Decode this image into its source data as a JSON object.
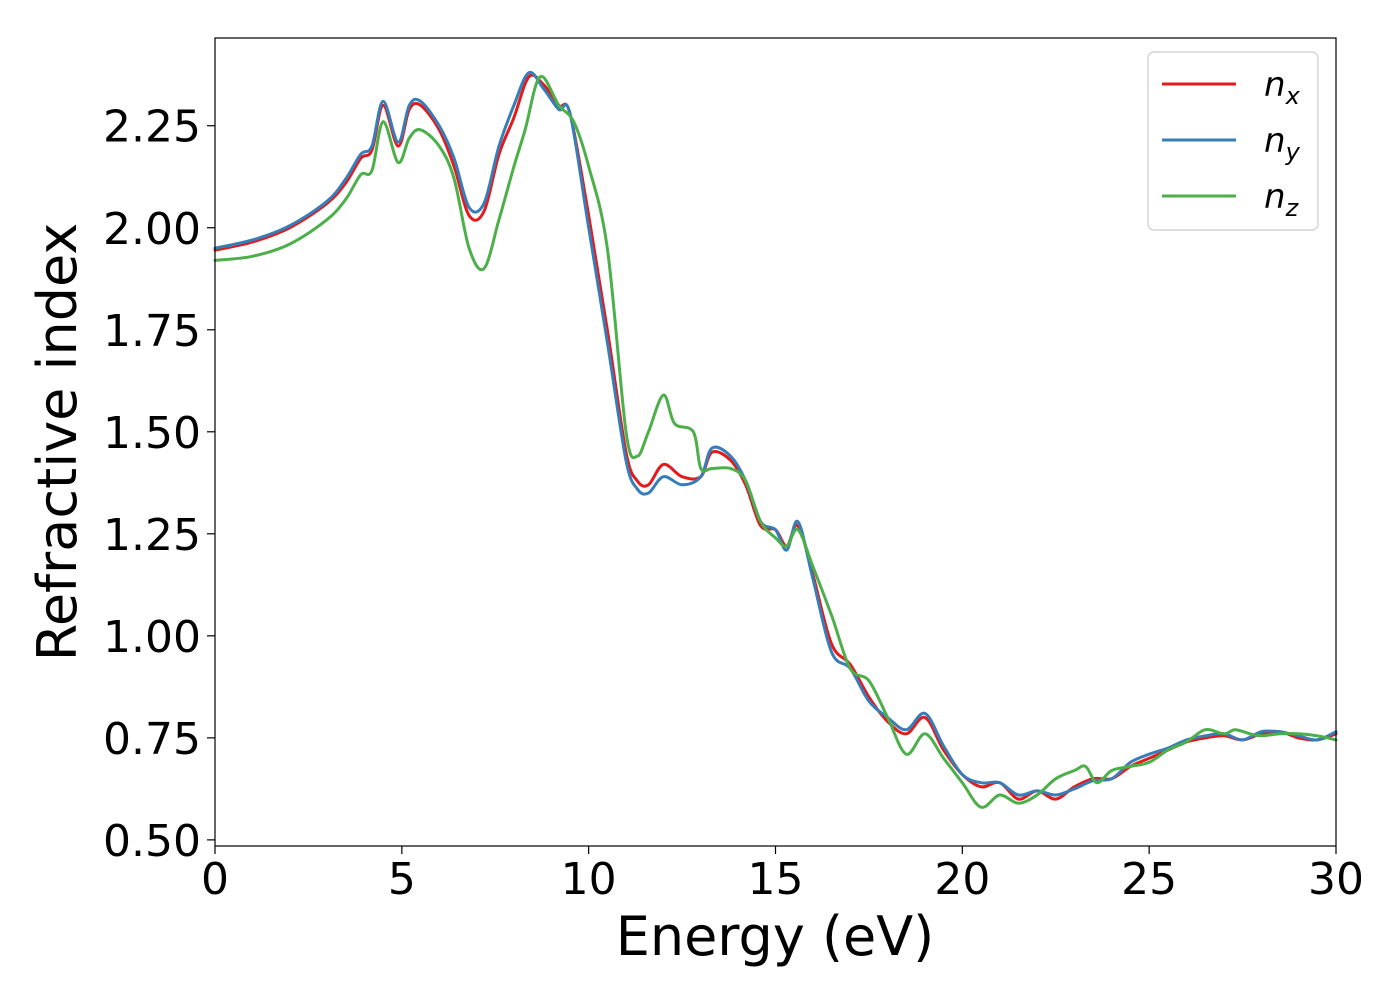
{
  "chart_data": {
    "type": "line",
    "title": "",
    "xlabel": "Energy (eV)",
    "ylabel": "Refractive index",
    "xlim": [
      0,
      30
    ],
    "ylim": [
      0.485,
      2.465
    ],
    "xticks": [
      0,
      5,
      10,
      15,
      20,
      25,
      30
    ],
    "xtick_labels": [
      "0",
      "5",
      "10",
      "15",
      "20",
      "25",
      "30"
    ],
    "yticks": [
      0.5,
      0.75,
      1.0,
      1.25,
      1.5,
      1.75,
      2.0,
      2.25
    ],
    "ytick_labels": [
      "0.50",
      "0.75",
      "1.00",
      "1.25",
      "1.50",
      "1.75",
      "2.00",
      "2.25"
    ],
    "grid": false,
    "legend_position": "top-right",
    "series": [
      {
        "name": "n_x",
        "label_main": "n",
        "label_sub": "x",
        "color": "#e41a1c",
        "x": [
          0,
          1,
          2,
          3,
          3.5,
          3.9,
          4.2,
          4.5,
          4.9,
          5.2,
          5.5,
          6.0,
          6.4,
          6.8,
          7.2,
          7.6,
          8.0,
          8.4,
          8.8,
          9.2,
          9.5,
          10.0,
          10.5,
          11.0,
          11.3,
          11.6,
          12.0,
          12.5,
          13.0,
          13.3,
          13.8,
          14.2,
          14.6,
          15.0,
          15.3,
          15.6,
          16.0,
          16.5,
          17.0,
          17.5,
          18.0,
          18.5,
          19.0,
          19.5,
          20.0,
          20.5,
          21.0,
          21.5,
          22.0,
          22.5,
          23.0,
          23.5,
          24.0,
          24.5,
          25.0,
          25.5,
          26.0,
          26.5,
          27.0,
          27.5,
          28.0,
          28.5,
          29.0,
          29.5,
          30.0
        ],
        "y": [
          1.945,
          1.965,
          2.0,
          2.06,
          2.11,
          2.17,
          2.19,
          2.3,
          2.2,
          2.29,
          2.3,
          2.24,
          2.15,
          2.03,
          2.04,
          2.18,
          2.27,
          2.37,
          2.35,
          2.3,
          2.28,
          2.03,
          1.75,
          1.45,
          1.38,
          1.37,
          1.42,
          1.39,
          1.39,
          1.45,
          1.43,
          1.37,
          1.27,
          1.26,
          1.22,
          1.27,
          1.15,
          0.98,
          0.93,
          0.85,
          0.79,
          0.76,
          0.8,
          0.72,
          0.66,
          0.63,
          0.64,
          0.6,
          0.62,
          0.6,
          0.63,
          0.65,
          0.65,
          0.68,
          0.7,
          0.72,
          0.74,
          0.75,
          0.755,
          0.745,
          0.76,
          0.765,
          0.75,
          0.745,
          0.76
        ]
      },
      {
        "name": "n_y",
        "label_main": "n",
        "label_sub": "y",
        "color": "#377eb8",
        "x": [
          0,
          1,
          2,
          3,
          3.5,
          3.9,
          4.2,
          4.5,
          4.9,
          5.2,
          5.5,
          6.0,
          6.4,
          6.8,
          7.2,
          7.6,
          8.0,
          8.4,
          8.8,
          9.2,
          9.5,
          10.0,
          10.5,
          11.0,
          11.3,
          11.6,
          12.0,
          12.5,
          13.0,
          13.3,
          13.8,
          14.2,
          14.6,
          15.0,
          15.3,
          15.6,
          16.0,
          16.5,
          17.0,
          17.5,
          18.0,
          18.5,
          19.0,
          19.5,
          20.0,
          20.5,
          21.0,
          21.5,
          22.0,
          22.5,
          23.0,
          23.5,
          24.0,
          24.5,
          25.0,
          25.5,
          26.0,
          26.5,
          27.0,
          27.5,
          28.0,
          28.5,
          29.0,
          29.5,
          30.0
        ],
        "y": [
          1.95,
          1.97,
          2.005,
          2.065,
          2.12,
          2.18,
          2.2,
          2.31,
          2.21,
          2.3,
          2.31,
          2.25,
          2.17,
          2.05,
          2.06,
          2.2,
          2.3,
          2.38,
          2.34,
          2.29,
          2.28,
          2.0,
          1.72,
          1.43,
          1.36,
          1.35,
          1.39,
          1.37,
          1.39,
          1.46,
          1.44,
          1.38,
          1.28,
          1.26,
          1.21,
          1.28,
          1.14,
          0.96,
          0.92,
          0.84,
          0.8,
          0.77,
          0.81,
          0.73,
          0.66,
          0.64,
          0.64,
          0.61,
          0.62,
          0.61,
          0.625,
          0.645,
          0.65,
          0.69,
          0.71,
          0.725,
          0.745,
          0.755,
          0.76,
          0.745,
          0.765,
          0.765,
          0.755,
          0.745,
          0.765
        ]
      },
      {
        "name": "n_z",
        "label_main": "n",
        "label_sub": "z",
        "color": "#4daf4a",
        "x": [
          0,
          1,
          2,
          3,
          3.5,
          3.9,
          4.2,
          4.5,
          4.9,
          5.2,
          5.5,
          6.0,
          6.4,
          6.8,
          7.2,
          7.6,
          8.0,
          8.3,
          8.7,
          9.2,
          9.6,
          10.0,
          10.5,
          11.0,
          11.3,
          11.6,
          12.0,
          12.3,
          12.8,
          13.0,
          13.3,
          13.8,
          14.2,
          14.6,
          15.0,
          15.3,
          15.6,
          16.0,
          16.5,
          17.0,
          17.5,
          18.0,
          18.5,
          19.0,
          19.5,
          20.0,
          20.5,
          21.0,
          21.5,
          22.0,
          22.5,
          23.0,
          23.3,
          23.6,
          24.0,
          24.5,
          25.0,
          25.5,
          26.0,
          26.5,
          27.0,
          27.3,
          27.7,
          28.0,
          28.5,
          29.0,
          29.5,
          30.0
        ],
        "y": [
          1.92,
          1.93,
          1.96,
          2.02,
          2.07,
          2.13,
          2.14,
          2.26,
          2.16,
          2.22,
          2.24,
          2.2,
          2.12,
          1.95,
          1.9,
          2.02,
          2.15,
          2.24,
          2.37,
          2.3,
          2.26,
          2.15,
          1.95,
          1.5,
          1.44,
          1.5,
          1.59,
          1.52,
          1.5,
          1.41,
          1.41,
          1.41,
          1.38,
          1.28,
          1.24,
          1.22,
          1.26,
          1.17,
          1.05,
          0.92,
          0.89,
          0.8,
          0.71,
          0.76,
          0.7,
          0.64,
          0.58,
          0.61,
          0.59,
          0.61,
          0.65,
          0.67,
          0.68,
          0.64,
          0.67,
          0.68,
          0.69,
          0.72,
          0.74,
          0.77,
          0.76,
          0.77,
          0.76,
          0.755,
          0.76,
          0.76,
          0.755,
          0.745
        ]
      }
    ]
  }
}
